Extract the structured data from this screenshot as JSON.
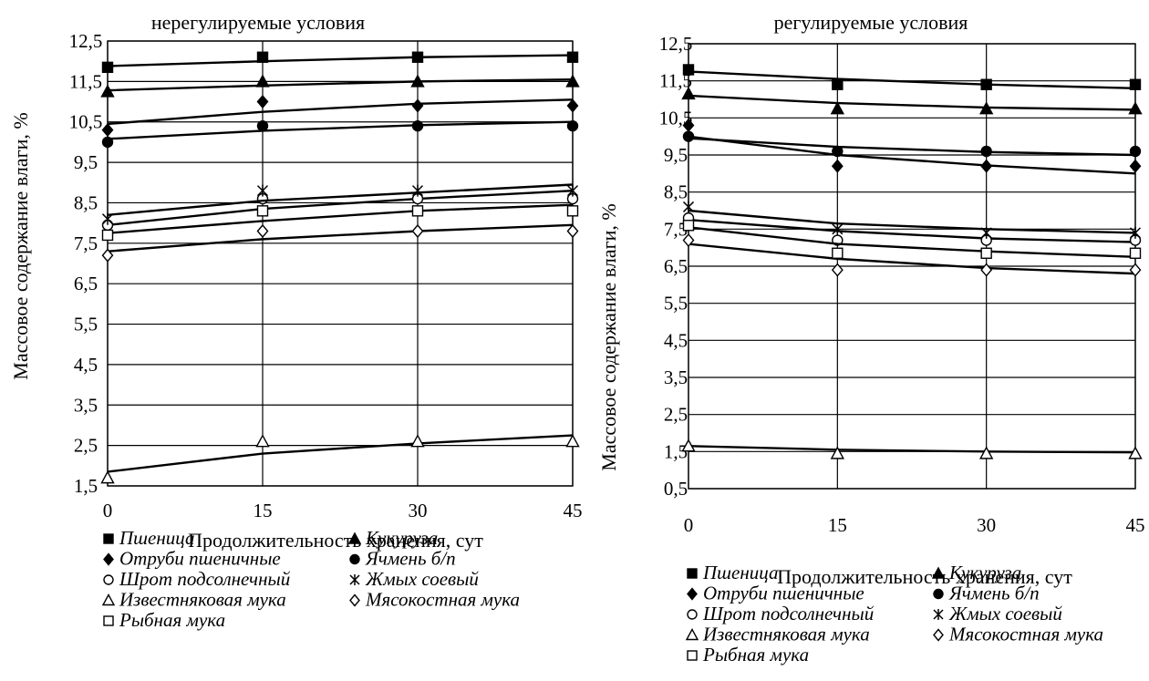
{
  "chart_data": [
    {
      "type": "line",
      "title": "нерегулируемые условия",
      "xlabel": "Продолжительность хранения, сут",
      "ylabel": "Массовое содержание влаги, %",
      "x": [
        0,
        15,
        30,
        45
      ],
      "ylim": [
        1.5,
        12.5
      ],
      "yticks": [
        "1,5",
        "2,5",
        "3,5",
        "4,5",
        "5,5",
        "6,5",
        "7,5",
        "8,5",
        "9,5",
        "10,5",
        "11,5",
        "12,5"
      ],
      "xticks": [
        "0",
        "15",
        "30",
        "45"
      ],
      "grid": true,
      "legend_position": "bottom",
      "series": [
        {
          "name": "Пшеница",
          "marker": "filled-square",
          "values": [
            11.85,
            12.1,
            12.1,
            12.1
          ],
          "trend": [
            11.88,
            12.0,
            12.1,
            12.15
          ]
        },
        {
          "name": "Кукуруза",
          "marker": "filled-triangle",
          "values": [
            11.25,
            11.5,
            11.5,
            11.5
          ],
          "trend": [
            11.28,
            11.4,
            11.5,
            11.55
          ]
        },
        {
          "name": "Отруби пшеничные",
          "marker": "filled-diamond",
          "values": [
            10.3,
            11.0,
            10.9,
            10.9
          ],
          "trend": [
            10.45,
            10.75,
            10.95,
            11.05
          ]
        },
        {
          "name": "Ячмень б/п",
          "marker": "filled-circle",
          "values": [
            10.0,
            10.4,
            10.4,
            10.4
          ],
          "trend": [
            10.08,
            10.28,
            10.42,
            10.5
          ]
        },
        {
          "name": "Шрот подсолнечный",
          "marker": "open-circle",
          "values": [
            7.95,
            8.6,
            8.6,
            8.6
          ],
          "trend": [
            7.95,
            8.35,
            8.6,
            8.8
          ]
        },
        {
          "name": "Жмых соевый",
          "marker": "star",
          "values": [
            8.1,
            8.8,
            8.8,
            8.8
          ],
          "trend": [
            8.2,
            8.55,
            8.75,
            8.95
          ]
        },
        {
          "name": "Известняковая мука",
          "marker": "open-triangle",
          "values": [
            1.7,
            2.6,
            2.6,
            2.6
          ],
          "trend": [
            1.85,
            2.3,
            2.55,
            2.75
          ]
        },
        {
          "name": "Мясокостная мука",
          "marker": "open-diamond",
          "values": [
            7.2,
            7.8,
            7.8,
            7.8
          ],
          "trend": [
            7.3,
            7.6,
            7.8,
            7.95
          ]
        },
        {
          "name": "Рыбная мука",
          "marker": "open-square",
          "values": [
            7.7,
            8.3,
            8.3,
            8.3
          ],
          "trend": [
            7.75,
            8.05,
            8.3,
            8.45
          ]
        }
      ]
    },
    {
      "type": "line",
      "title": "регулируемые условия",
      "xlabel": "Продолжительность хранения, сут",
      "ylabel": "Массовое содержание влаги, %",
      "x": [
        0,
        15,
        30,
        45
      ],
      "ylim": [
        0.5,
        12.5
      ],
      "yticks": [
        "0,5",
        "1,5",
        "2,5",
        "3,5",
        "4,5",
        "5,5",
        "6,5",
        "7,5",
        "8,5",
        "9,5",
        "10,5",
        "11,5",
        "12,5"
      ],
      "xticks": [
        "0",
        "15",
        "30",
        "45"
      ],
      "grid": true,
      "legend_position": "bottom",
      "series": [
        {
          "name": "Пшеница",
          "marker": "filled-square",
          "values": [
            11.8,
            11.4,
            11.4,
            11.4
          ],
          "trend": [
            11.75,
            11.55,
            11.4,
            11.3
          ]
        },
        {
          "name": "Кукуруза",
          "marker": "filled-triangle",
          "values": [
            11.15,
            10.75,
            10.75,
            10.75
          ],
          "trend": [
            11.1,
            10.9,
            10.78,
            10.72
          ]
        },
        {
          "name": "Отруби пшеничные",
          "marker": "filled-diamond",
          "values": [
            10.3,
            9.2,
            9.2,
            9.2
          ],
          "trend": [
            10.0,
            9.5,
            9.22,
            9.0
          ]
        },
        {
          "name": "Ячмень б/п",
          "marker": "filled-circle",
          "values": [
            10.0,
            9.6,
            9.6,
            9.6
          ],
          "trend": [
            9.95,
            9.72,
            9.58,
            9.5
          ]
        },
        {
          "name": "Шрот подсолнечный",
          "marker": "open-circle",
          "values": [
            7.8,
            7.2,
            7.2,
            7.2
          ],
          "trend": [
            7.75,
            7.45,
            7.25,
            7.15
          ]
        },
        {
          "name": "Жмых соевый",
          "marker": "star",
          "values": [
            8.1,
            7.5,
            7.4,
            7.4
          ],
          "trend": [
            8.0,
            7.65,
            7.5,
            7.4
          ]
        },
        {
          "name": "Известняковая мука",
          "marker": "open-triangle",
          "values": [
            1.65,
            1.45,
            1.45,
            1.45
          ],
          "trend": [
            1.65,
            1.55,
            1.5,
            1.48
          ]
        },
        {
          "name": "Мясокостная мука",
          "marker": "open-diamond",
          "values": [
            7.2,
            6.4,
            6.4,
            6.4
          ],
          "trend": [
            7.1,
            6.7,
            6.45,
            6.3
          ]
        },
        {
          "name": "Рыбная мука",
          "marker": "open-square",
          "values": [
            7.6,
            6.85,
            6.85,
            6.85
          ],
          "trend": [
            7.55,
            7.1,
            6.9,
            6.75
          ]
        }
      ]
    }
  ]
}
